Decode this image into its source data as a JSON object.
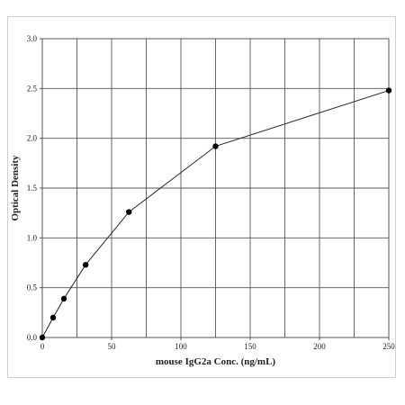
{
  "chart_data": {
    "type": "line",
    "title": "",
    "xlabel": "mouse IgG2a Conc. (ng/mL)",
    "ylabel": "Optical Density",
    "xlim": [
      0,
      250
    ],
    "ylim": [
      0,
      3.0
    ],
    "grid": true,
    "x_ticks": [
      0,
      50,
      100,
      150,
      200,
      250
    ],
    "y_ticks": [
      0.0,
      0.5,
      1.0,
      1.5,
      2.0,
      2.5,
      3.0
    ],
    "x_tick_labels": [
      "0",
      "50",
      "100",
      "150",
      "200",
      "250"
    ],
    "y_tick_labels": [
      "0.0",
      "0.5",
      "1.0",
      "1.5",
      "2.0",
      "2.5",
      "3.0"
    ],
    "x_minor_step": 25,
    "series": [
      {
        "x": [
          0,
          7.8,
          15.6,
          31.25,
          62.5,
          125,
          250
        ],
        "values": [
          0.0,
          0.2,
          0.39,
          0.73,
          1.26,
          1.92,
          2.48
        ]
      }
    ],
    "colors": {
      "line": "#222222",
      "marker": "#000000",
      "grid": "#555555"
    }
  }
}
